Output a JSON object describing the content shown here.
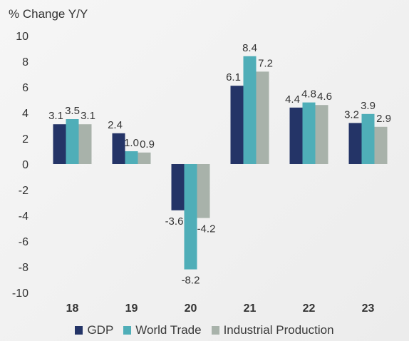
{
  "chart_data": {
    "type": "bar",
    "title": "% Change Y/Y",
    "categories": [
      "18",
      "19",
      "20",
      "21",
      "22",
      "23"
    ],
    "series": [
      {
        "name": "GDP",
        "color": "#243467",
        "values": [
          3.1,
          2.4,
          -3.6,
          6.1,
          4.4,
          3.2
        ]
      },
      {
        "name": "World Trade",
        "color": "#4faeb8",
        "values": [
          3.5,
          1.0,
          -8.2,
          8.4,
          4.8,
          3.9
        ]
      },
      {
        "name": "Industrial Production",
        "color": "#a8b2aa",
        "values": [
          3.1,
          0.9,
          -4.2,
          7.2,
          4.6,
          2.9
        ]
      }
    ],
    "data_labels": [
      [
        "3.1",
        "3.5",
        "3.1"
      ],
      [
        "2.4",
        "1.0",
        "0.9"
      ],
      [
        "-3.6",
        "-8.2",
        "-4.2"
      ],
      [
        "6.1",
        "8.4",
        "7.2"
      ],
      [
        "4.4",
        "4.8",
        "4.6"
      ],
      [
        "3.2",
        "3.9",
        "2.9"
      ]
    ],
    "ylim": [
      -10,
      10
    ],
    "yticks": [
      "10",
      "8",
      "6",
      "4",
      "2",
      "0",
      "-2",
      "-4",
      "-6",
      "-8",
      "-10"
    ],
    "grid": false,
    "legend_position": "bottom"
  }
}
